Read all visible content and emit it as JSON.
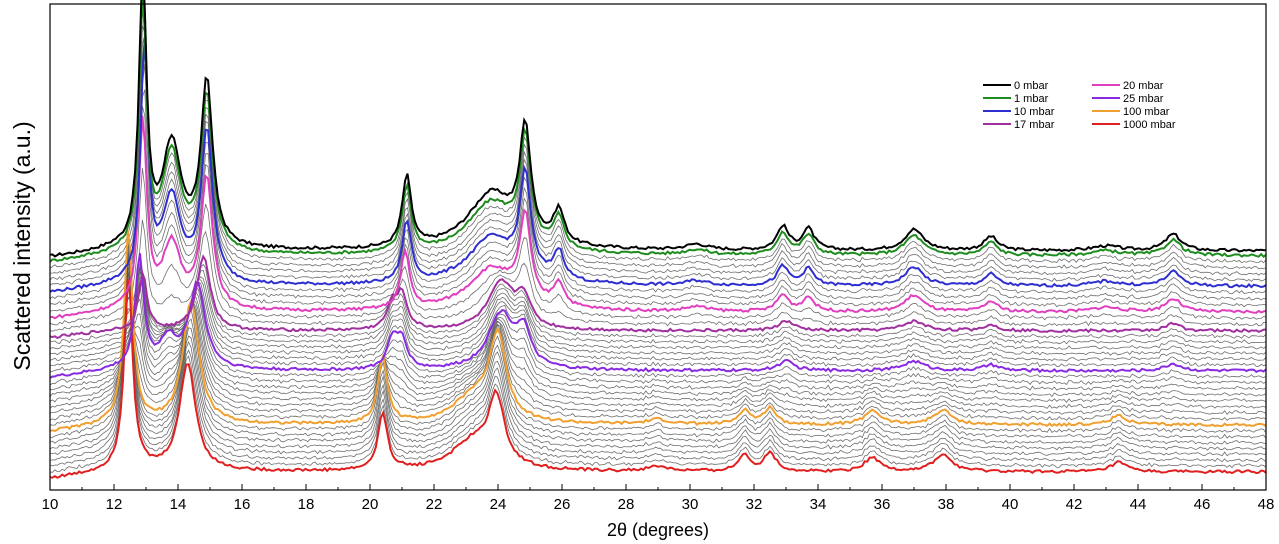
{
  "chart_data": {
    "type": "line",
    "title": "",
    "xlabel": "2θ (degrees)",
    "ylabel": "Scattered intensity (a.u.)",
    "xlim": [
      10,
      48
    ],
    "xticks": [
      10,
      12,
      14,
      16,
      18,
      20,
      22,
      24,
      26,
      28,
      30,
      32,
      34,
      36,
      38,
      40,
      42,
      44,
      46,
      48
    ],
    "y_scale": "arbitrary units, stacked (waterfall) offset",
    "grid": false,
    "legend_position": "top-right",
    "legend_columns": 2,
    "intermediate_curves_color": "#555555",
    "series": [
      {
        "name": "0 mbar",
        "color": "#000000",
        "baseline": 0.5,
        "peaks": [
          [
            12.9,
            0.58,
            0.14
          ],
          [
            13.8,
            0.22,
            0.35
          ],
          [
            14.9,
            0.35,
            0.22
          ],
          [
            21.15,
            0.15,
            0.17
          ],
          [
            23.8,
            0.12,
            0.9
          ],
          [
            24.85,
            0.23,
            0.2
          ],
          [
            25.9,
            0.07,
            0.2
          ],
          [
            30.2,
            0.012,
            0.4
          ],
          [
            32.9,
            0.05,
            0.22
          ],
          [
            33.7,
            0.045,
            0.22
          ],
          [
            37.0,
            0.045,
            0.35
          ],
          [
            39.4,
            0.03,
            0.25
          ],
          [
            43.0,
            0.01,
            0.5
          ],
          [
            45.1,
            0.035,
            0.3
          ]
        ]
      },
      {
        "name": "1 mbar",
        "color": "#1e8c1e",
        "baseline": 0.49,
        "peaks": [
          [
            12.9,
            0.53,
            0.14
          ],
          [
            13.8,
            0.21,
            0.35
          ],
          [
            14.9,
            0.33,
            0.22
          ],
          [
            21.15,
            0.14,
            0.17
          ],
          [
            23.8,
            0.11,
            0.9
          ],
          [
            24.85,
            0.22,
            0.2
          ],
          [
            25.9,
            0.065,
            0.2
          ],
          [
            30.2,
            0.011,
            0.4
          ],
          [
            32.9,
            0.047,
            0.22
          ],
          [
            33.7,
            0.042,
            0.22
          ],
          [
            37.0,
            0.042,
            0.35
          ],
          [
            39.4,
            0.028,
            0.25
          ],
          [
            43.0,
            0.01,
            0.5
          ],
          [
            45.1,
            0.033,
            0.3
          ]
        ]
      },
      {
        "name": "10 mbar",
        "color": "#2f2fd0",
        "baseline": 0.425,
        "peaks": [
          [
            12.95,
            0.5,
            0.14
          ],
          [
            13.8,
            0.18,
            0.35
          ],
          [
            14.9,
            0.32,
            0.22
          ],
          [
            21.15,
            0.13,
            0.17
          ],
          [
            23.8,
            0.1,
            0.9
          ],
          [
            24.85,
            0.21,
            0.2
          ],
          [
            25.9,
            0.06,
            0.2
          ],
          [
            30.2,
            0.01,
            0.4
          ],
          [
            32.9,
            0.04,
            0.22
          ],
          [
            33.7,
            0.035,
            0.22
          ],
          [
            37.0,
            0.04,
            0.35
          ],
          [
            39.4,
            0.025,
            0.25
          ],
          [
            43.0,
            0.01,
            0.5
          ],
          [
            45.1,
            0.03,
            0.3
          ]
        ]
      },
      {
        "name": "17 mbar",
        "color": "#a0309f",
        "baseline": 0.33,
        "peaks": [
          [
            12.9,
            0.12,
            0.16
          ],
          [
            14.8,
            0.16,
            0.25
          ],
          [
            20.7,
            0.05,
            0.2
          ],
          [
            21.0,
            0.07,
            0.2
          ],
          [
            24.1,
            0.1,
            0.5
          ],
          [
            24.8,
            0.06,
            0.25
          ],
          [
            33.0,
            0.02,
            0.3
          ],
          [
            37.0,
            0.02,
            0.4
          ],
          [
            39.4,
            0.012,
            0.3
          ],
          [
            45.1,
            0.015,
            0.3
          ]
        ]
      },
      {
        "name": "20 mbar",
        "color": "#e040c0",
        "baseline": 0.37,
        "peaks": [
          [
            12.9,
            0.4,
            0.15
          ],
          [
            13.8,
            0.14,
            0.35
          ],
          [
            14.9,
            0.28,
            0.22
          ],
          [
            21.1,
            0.12,
            0.17
          ],
          [
            23.8,
            0.09,
            0.9
          ],
          [
            24.85,
            0.18,
            0.2
          ],
          [
            25.9,
            0.05,
            0.2
          ],
          [
            30.2,
            0.01,
            0.4
          ],
          [
            32.9,
            0.035,
            0.22
          ],
          [
            33.7,
            0.03,
            0.22
          ],
          [
            37.0,
            0.035,
            0.35
          ],
          [
            39.4,
            0.022,
            0.25
          ],
          [
            43.0,
            0.01,
            0.5
          ],
          [
            45.1,
            0.028,
            0.3
          ]
        ]
      },
      {
        "name": "25 mbar",
        "color": "#8a2be2",
        "baseline": 0.245,
        "peaks": [
          [
            12.8,
            0.24,
            0.16
          ],
          [
            13.7,
            0.06,
            0.35
          ],
          [
            14.6,
            0.18,
            0.3
          ],
          [
            20.7,
            0.06,
            0.2
          ],
          [
            21.0,
            0.06,
            0.2
          ],
          [
            24.1,
            0.12,
            0.5
          ],
          [
            24.8,
            0.07,
            0.25
          ],
          [
            33.0,
            0.02,
            0.3
          ],
          [
            37.0,
            0.02,
            0.4
          ],
          [
            39.4,
            0.012,
            0.3
          ],
          [
            45.1,
            0.015,
            0.3
          ]
        ]
      },
      {
        "name": "100 mbar",
        "color": "#f0a030",
        "baseline": 0.13,
        "peaks": [
          [
            12.45,
            0.41,
            0.16
          ],
          [
            14.4,
            0.26,
            0.3
          ],
          [
            20.4,
            0.14,
            0.18
          ],
          [
            23.3,
            0.06,
            0.8
          ],
          [
            24.0,
            0.17,
            0.3
          ],
          [
            29.0,
            0.01,
            0.4
          ],
          [
            31.7,
            0.03,
            0.22
          ],
          [
            32.5,
            0.035,
            0.22
          ],
          [
            35.7,
            0.03,
            0.3
          ],
          [
            37.9,
            0.03,
            0.35
          ],
          [
            43.4,
            0.02,
            0.3
          ]
        ]
      },
      {
        "name": "1000 mbar",
        "color": "#e02020",
        "baseline": 0.03,
        "peaks": [
          [
            12.45,
            0.41,
            0.16
          ],
          [
            14.3,
            0.23,
            0.3
          ],
          [
            20.4,
            0.12,
            0.18
          ],
          [
            23.2,
            0.06,
            0.8
          ],
          [
            23.95,
            0.14,
            0.3
          ],
          [
            29.0,
            0.01,
            0.4
          ],
          [
            31.7,
            0.035,
            0.22
          ],
          [
            32.5,
            0.04,
            0.22
          ],
          [
            35.7,
            0.03,
            0.3
          ],
          [
            37.9,
            0.035,
            0.35
          ],
          [
            43.4,
            0.02,
            0.3
          ]
        ]
      }
    ]
  }
}
